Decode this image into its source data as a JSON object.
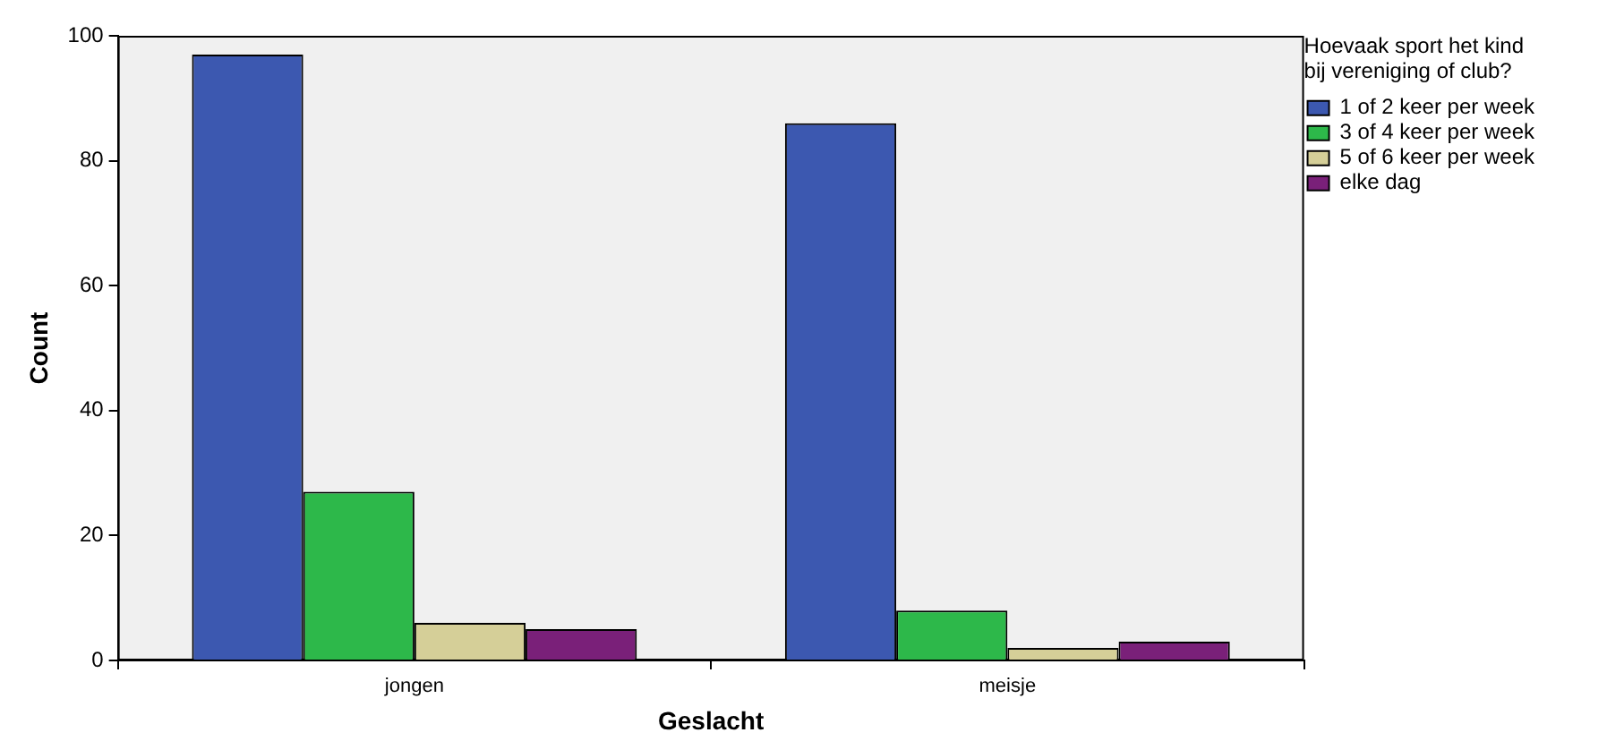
{
  "chart_data": {
    "type": "bar",
    "xlabel": "Geslacht",
    "ylabel": "Count",
    "legend_title": "Hoevaak sport het kind bij vereniging of club?",
    "categories": [
      "jongen",
      "meisje"
    ],
    "series": [
      {
        "name": "1 of 2 keer per week",
        "color": "#3c58b0",
        "values": [
          97,
          86
        ]
      },
      {
        "name": "3 of 4 keer per week",
        "color": "#2db84a",
        "values": [
          27,
          8
        ]
      },
      {
        "name": "5 of 6 keer per week",
        "color": "#d5cf98",
        "values": [
          6,
          2
        ]
      },
      {
        "name": "elke dag",
        "color": "#7a2079",
        "values": [
          5,
          3
        ]
      }
    ],
    "ylim": [
      0,
      100
    ],
    "yticks": [
      0,
      20,
      40,
      60,
      80,
      100
    ],
    "grid": false,
    "legend": "top right"
  }
}
